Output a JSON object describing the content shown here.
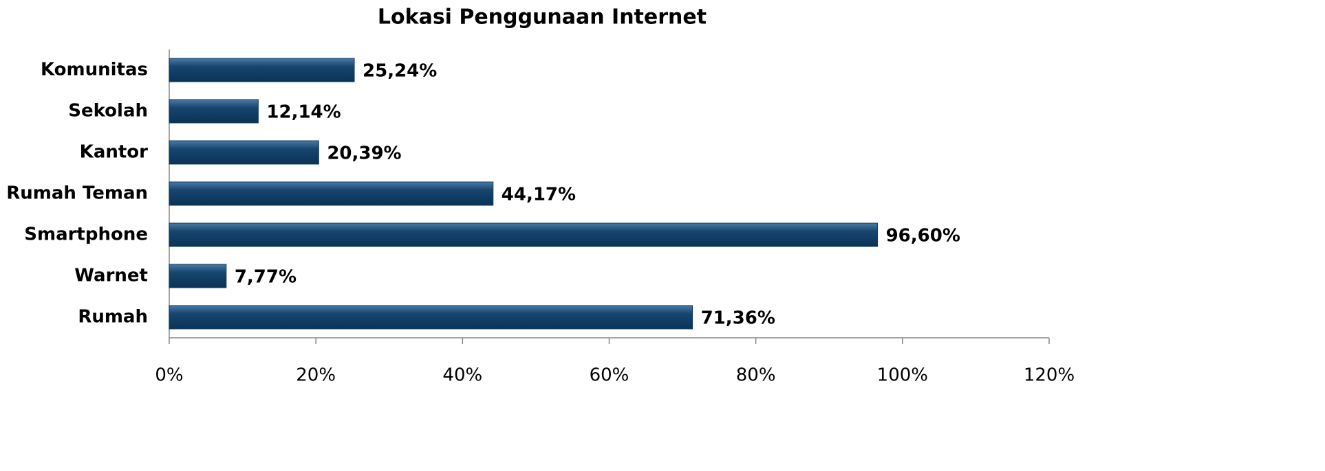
{
  "chart_data": {
    "type": "bar",
    "orientation": "horizontal",
    "title": "Lokasi Penggunaan Internet",
    "categories": [
      "Komunitas",
      "Sekolah",
      "Kantor",
      "Rumah Teman",
      "Smartphone",
      "Warnet",
      "Rumah"
    ],
    "values": [
      25.24,
      12.14,
      20.39,
      44.17,
      96.6,
      7.77,
      71.36
    ],
    "value_labels": [
      "25,24%",
      "12,14%",
      "20,39%",
      "44,17%",
      "96,60%",
      "7,77%",
      "71,36%"
    ],
    "color": "#0e3a60",
    "xlim": [
      0,
      120
    ],
    "xticks": [
      {
        "value": 0,
        "label": "0%"
      },
      {
        "value": 20,
        "label": "20%"
      },
      {
        "value": 40,
        "label": "40%"
      },
      {
        "value": 60,
        "label": "60%"
      },
      {
        "value": 80,
        "label": "80%"
      },
      {
        "value": 100,
        "label": "100%"
      },
      {
        "value": 120,
        "label": "120%"
      }
    ],
    "grid": false
  }
}
